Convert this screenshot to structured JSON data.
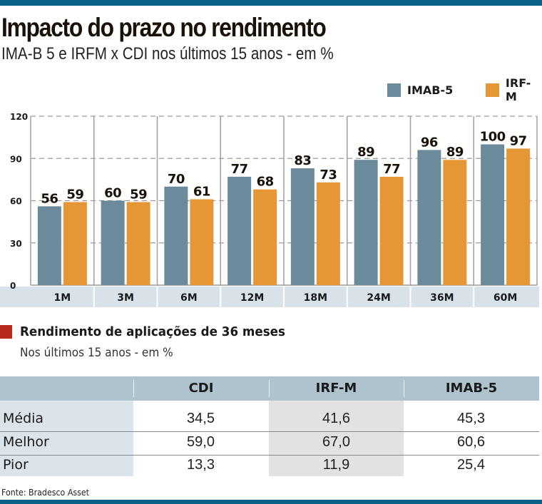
{
  "header": {
    "title": "Impacto do prazo no rendimento",
    "subtitle": "IMA-B 5 e IRFM x CDI nos últimos 15 anos - em %"
  },
  "colors": {
    "imab5": "#6b8a9a",
    "irfm": "#e69735",
    "top_bar": "#0b6189",
    "section_marker": "#b8291c",
    "category_band": "#d9e2e9",
    "table_header": "#afc3ce"
  },
  "chart_data": {
    "type": "bar",
    "title": "Impacto do prazo no rendimento",
    "subtitle": "IMA-B 5 e IRFM x CDI nos últimos 15 anos - em %",
    "xlabel": "",
    "ylabel": "",
    "categories": [
      "1M",
      "3M",
      "6M",
      "12M",
      "18M",
      "24M",
      "36M",
      "60M"
    ],
    "series": [
      {
        "name": "IMAB-5",
        "values": [
          56,
          60,
          70,
          77,
          83,
          89,
          96,
          100
        ]
      },
      {
        "name": "IRF-M",
        "values": [
          59,
          59,
          61,
          68,
          73,
          77,
          89,
          97
        ]
      }
    ],
    "ylim": [
      0,
      120
    ],
    "yticks": [
      "0",
      "30",
      "60",
      "90",
      "120"
    ],
    "ytick_values": [
      0,
      30,
      60,
      90,
      120
    ],
    "grid": true,
    "legend_position": "top-right",
    "data_labels": true
  },
  "legend": {
    "items": [
      {
        "label": "IMAB-5"
      },
      {
        "label": "IRF-M"
      }
    ]
  },
  "section2": {
    "title": "Rendimento de aplicações de 36 meses",
    "subtitle": "Nos últimos 15 anos - em %"
  },
  "table": {
    "columns": [
      "",
      "CDI",
      "IRF-M",
      "IMAB-5"
    ],
    "rows": [
      {
        "label": "Média",
        "values": [
          "34,5",
          "41,6",
          "45,3"
        ]
      },
      {
        "label": "Melhor",
        "values": [
          "59,0",
          "67,0",
          "60,6"
        ]
      },
      {
        "label": "Pior",
        "values": [
          "13,3",
          "11,9",
          "25,4"
        ]
      }
    ]
  },
  "source": "Fonte: Bradesco Asset"
}
